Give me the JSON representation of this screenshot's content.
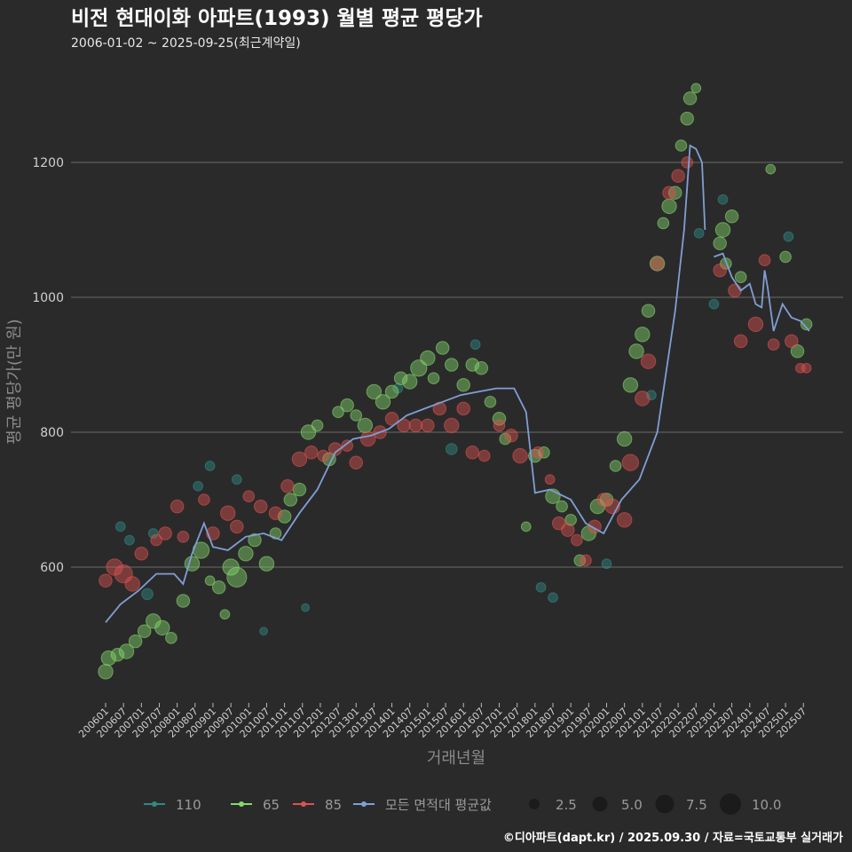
{
  "title": "비전 현대이화 아파트(1993) 월별 평균 평당가",
  "subtitle": "2006-01-02 ~ 2025-09-25(최근계약일)",
  "caption": "©디아파트(dapt.kr) / 2025.09.30 / 자료=국토교통부 실거래가",
  "chart_data": {
    "type": "scatter",
    "title": "비전 현대이화 아파트(1993) 월별 평균 평당가",
    "xlabel": "거래년월",
    "ylabel": "평균 평당가(만 원)",
    "ylim": [
      420,
      1330
    ],
    "yticks": [
      600,
      800,
      1000,
      1200
    ],
    "xticks": [
      "200601",
      "200607",
      "200701",
      "200707",
      "200801",
      "200807",
      "200901",
      "200907",
      "201001",
      "201007",
      "201101",
      "201107",
      "201201",
      "201207",
      "201301",
      "201307",
      "201401",
      "201407",
      "201501",
      "201507",
      "201601",
      "201607",
      "201701",
      "201707",
      "201801",
      "201807",
      "201901",
      "201907",
      "202001",
      "202007",
      "202101",
      "202107",
      "202201",
      "202207",
      "202301",
      "202307",
      "202401",
      "202407",
      "202501",
      "202507"
    ],
    "grid": true,
    "legend_placement": "bottom",
    "legend": {
      "series": [
        {
          "name": "110",
          "color": "#2e8b84"
        },
        {
          "name": "65",
          "color": "#86d86d"
        },
        {
          "name": "85",
          "color": "#dc5350"
        },
        {
          "name": "모든 면적대 평균값",
          "color": "#7f9fd4"
        }
      ],
      "sizes": [
        "2.5",
        "5.0",
        "7.5",
        "10.0"
      ]
    },
    "series": [
      {
        "name": "110",
        "color": "#2e8b84",
        "points": [
          [
            "2006-06",
            660,
            3
          ],
          [
            "2006-09",
            640,
            3
          ],
          [
            "2007-03",
            560,
            4
          ],
          [
            "2007-05",
            650,
            3
          ],
          [
            "2008-08",
            720,
            3
          ],
          [
            "2008-12",
            750,
            3
          ],
          [
            "2009-09",
            730,
            3
          ],
          [
            "2010-06",
            505,
            2
          ],
          [
            "2011-08",
            540,
            2
          ],
          [
            "2014-03",
            865,
            3
          ],
          [
            "2015-09",
            775,
            4
          ],
          [
            "2016-05",
            930,
            3
          ],
          [
            "2018-03",
            570,
            3
          ],
          [
            "2018-07",
            555,
            3
          ],
          [
            "2020-01",
            605,
            3
          ],
          [
            "2021-04",
            855,
            3
          ],
          [
            "2022-08",
            1095,
            3
          ],
          [
            "2023-01",
            990,
            3
          ],
          [
            "2023-04",
            1145,
            3
          ],
          [
            "2025-02",
            1090,
            3
          ]
        ]
      },
      {
        "name": "65",
        "color": "#86d86d",
        "points": [
          [
            "2006-01",
            445,
            6
          ],
          [
            "2006-02",
            465,
            6
          ],
          [
            "2006-05",
            470,
            5
          ],
          [
            "2006-08",
            475,
            6
          ],
          [
            "2006-11",
            490,
            5
          ],
          [
            "2007-02",
            505,
            5
          ],
          [
            "2007-05",
            520,
            6
          ],
          [
            "2007-08",
            510,
            6
          ],
          [
            "2007-11",
            495,
            4
          ],
          [
            "2008-03",
            550,
            5
          ],
          [
            "2008-06",
            605,
            6
          ],
          [
            "2008-09",
            625,
            7
          ],
          [
            "2008-12",
            580,
            3
          ],
          [
            "2009-03",
            570,
            5
          ],
          [
            "2009-05",
            530,
            3
          ],
          [
            "2009-07",
            600,
            7
          ],
          [
            "2009-09",
            585,
            9
          ],
          [
            "2009-12",
            620,
            6
          ],
          [
            "2010-03",
            640,
            5
          ],
          [
            "2010-07",
            605,
            6
          ],
          [
            "2010-10",
            650,
            4
          ],
          [
            "2011-01",
            675,
            5
          ],
          [
            "2011-03",
            700,
            5
          ],
          [
            "2011-06",
            715,
            5
          ],
          [
            "2011-09",
            800,
            6
          ],
          [
            "2011-12",
            810,
            4
          ],
          [
            "2012-04",
            760,
            5
          ],
          [
            "2012-07",
            830,
            4
          ],
          [
            "2012-10",
            840,
            5
          ],
          [
            "2013-01",
            825,
            4
          ],
          [
            "2013-04",
            810,
            6
          ],
          [
            "2013-07",
            860,
            6
          ],
          [
            "2013-10",
            845,
            6
          ],
          [
            "2014-01",
            860,
            5
          ],
          [
            "2014-04",
            880,
            5
          ],
          [
            "2014-07",
            875,
            6
          ],
          [
            "2014-10",
            895,
            7
          ],
          [
            "2015-01",
            910,
            6
          ],
          [
            "2015-03",
            880,
            4
          ],
          [
            "2015-06",
            925,
            5
          ],
          [
            "2015-09",
            900,
            5
          ],
          [
            "2016-01",
            870,
            5
          ],
          [
            "2016-04",
            900,
            5
          ],
          [
            "2016-07",
            895,
            5
          ],
          [
            "2016-10",
            845,
            4
          ],
          [
            "2017-01",
            820,
            5
          ],
          [
            "2017-03",
            790,
            4
          ],
          [
            "2017-10",
            660,
            3
          ],
          [
            "2018-01",
            765,
            5
          ],
          [
            "2018-04",
            770,
            4
          ],
          [
            "2018-07",
            705,
            6
          ],
          [
            "2018-10",
            690,
            4
          ],
          [
            "2019-01",
            670,
            4
          ],
          [
            "2019-04",
            610,
            4
          ],
          [
            "2019-07",
            650,
            6
          ],
          [
            "2019-10",
            690,
            6
          ],
          [
            "2020-01",
            700,
            5
          ],
          [
            "2020-04",
            750,
            4
          ],
          [
            "2020-07",
            790,
            6
          ],
          [
            "2020-09",
            870,
            6
          ],
          [
            "2020-11",
            920,
            6
          ],
          [
            "2021-01",
            945,
            6
          ],
          [
            "2021-03",
            980,
            5
          ],
          [
            "2021-06",
            1050,
            6
          ],
          [
            "2021-08",
            1110,
            4
          ],
          [
            "2021-10",
            1135,
            6
          ],
          [
            "2021-12",
            1155,
            5
          ],
          [
            "2022-02",
            1225,
            4
          ],
          [
            "2022-04",
            1265,
            5
          ],
          [
            "2022-05",
            1295,
            5
          ],
          [
            "2022-07",
            1310,
            3
          ],
          [
            "2023-03",
            1080,
            5
          ],
          [
            "2023-04",
            1100,
            6
          ],
          [
            "2023-05",
            1050,
            4
          ],
          [
            "2023-07",
            1120,
            5
          ],
          [
            "2023-10",
            1030,
            4
          ],
          [
            "2024-08",
            1190,
            3
          ],
          [
            "2025-01",
            1060,
            4
          ],
          [
            "2025-05",
            920,
            5
          ],
          [
            "2025-08",
            960,
            4
          ]
        ]
      },
      {
        "name": "85",
        "color": "#dc5350",
        "points": [
          [
            "2006-01",
            580,
            5
          ],
          [
            "2006-04",
            600,
            7
          ],
          [
            "2006-07",
            590,
            8
          ],
          [
            "2006-10",
            575,
            6
          ],
          [
            "2007-01",
            620,
            5
          ],
          [
            "2007-06",
            640,
            4
          ],
          [
            "2007-09",
            650,
            5
          ],
          [
            "2008-01",
            690,
            5
          ],
          [
            "2008-03",
            645,
            4
          ],
          [
            "2008-10",
            700,
            4
          ],
          [
            "2009-01",
            650,
            5
          ],
          [
            "2009-06",
            680,
            6
          ],
          [
            "2009-09",
            660,
            5
          ],
          [
            "2010-01",
            705,
            4
          ],
          [
            "2010-05",
            690,
            5
          ],
          [
            "2010-10",
            680,
            5
          ],
          [
            "2011-02",
            720,
            5
          ],
          [
            "2011-06",
            760,
            6
          ],
          [
            "2011-10",
            770,
            5
          ],
          [
            "2012-02",
            765,
            4
          ],
          [
            "2012-06",
            775,
            5
          ],
          [
            "2012-10",
            780,
            4
          ],
          [
            "2013-01",
            755,
            5
          ],
          [
            "2013-05",
            790,
            6
          ],
          [
            "2013-09",
            800,
            5
          ],
          [
            "2014-01",
            820,
            5
          ],
          [
            "2014-05",
            810,
            5
          ],
          [
            "2014-09",
            810,
            5
          ],
          [
            "2015-01",
            810,
            5
          ],
          [
            "2015-05",
            835,
            5
          ],
          [
            "2015-09",
            810,
            6
          ],
          [
            "2016-01",
            835,
            5
          ],
          [
            "2016-04",
            770,
            5
          ],
          [
            "2016-08",
            765,
            4
          ],
          [
            "2017-01",
            810,
            4
          ],
          [
            "2017-05",
            795,
            5
          ],
          [
            "2017-08",
            765,
            6
          ],
          [
            "2018-02",
            770,
            4
          ],
          [
            "2018-06",
            730,
            3
          ],
          [
            "2018-09",
            665,
            5
          ],
          [
            "2018-12",
            655,
            5
          ],
          [
            "2019-03",
            640,
            4
          ],
          [
            "2019-06",
            610,
            4
          ],
          [
            "2019-09",
            660,
            5
          ],
          [
            "2019-12",
            700,
            5
          ],
          [
            "2020-03",
            690,
            6
          ],
          [
            "2020-07",
            670,
            6
          ],
          [
            "2020-09",
            755,
            7
          ],
          [
            "2021-01",
            850,
            6
          ],
          [
            "2021-03",
            905,
            6
          ],
          [
            "2021-06",
            1050,
            5
          ],
          [
            "2021-10",
            1155,
            5
          ],
          [
            "2022-01",
            1180,
            5
          ],
          [
            "2022-04",
            1200,
            4
          ],
          [
            "2023-03",
            1040,
            5
          ],
          [
            "2023-08",
            1010,
            5
          ],
          [
            "2023-10",
            935,
            5
          ],
          [
            "2024-03",
            960,
            6
          ],
          [
            "2024-06",
            1055,
            4
          ],
          [
            "2024-09",
            930,
            4
          ],
          [
            "2025-03",
            935,
            5
          ],
          [
            "2025-06",
            895,
            3
          ],
          [
            "2025-08",
            895,
            3
          ]
        ]
      },
      {
        "name": "모든 면적대 평균값",
        "color": "#7f9fd4",
        "type": "line",
        "segments": [
          [
            [
              "2006-01",
              518
            ],
            [
              "2006-06",
              545
            ],
            [
              "2006-12",
              565
            ],
            [
              "2007-06",
              590
            ],
            [
              "2007-12",
              590
            ],
            [
              "2008-03",
              575
            ],
            [
              "2008-06",
              620
            ],
            [
              "2008-10",
              665
            ],
            [
              "2009-01",
              630
            ],
            [
              "2009-06",
              625
            ],
            [
              "2009-12",
              645
            ],
            [
              "2010-06",
              650
            ],
            [
              "2010-12",
              640
            ],
            [
              "2011-06",
              680
            ],
            [
              "2011-12",
              715
            ],
            [
              "2012-06",
              770
            ],
            [
              "2012-12",
              790
            ],
            [
              "2013-06",
              795
            ],
            [
              "2013-12",
              805
            ],
            [
              "2014-06",
              825
            ],
            [
              "2014-12",
              835
            ],
            [
              "2015-06",
              845
            ],
            [
              "2015-12",
              855
            ],
            [
              "2016-06",
              860
            ],
            [
              "2016-12",
              865
            ],
            [
              "2017-06",
              865
            ],
            [
              "2017-10",
              830
            ],
            [
              "2018-01",
              710
            ],
            [
              "2018-06",
              715
            ],
            [
              "2019-01",
              700
            ],
            [
              "2019-06",
              665
            ],
            [
              "2019-12",
              650
            ],
            [
              "2020-06",
              700
            ],
            [
              "2020-12",
              730
            ],
            [
              "2021-06",
              800
            ],
            [
              "2021-12",
              980
            ],
            [
              "2022-03",
              1100
            ],
            [
              "2022-05",
              1225
            ],
            [
              "2022-07",
              1220
            ],
            [
              "2022-09",
              1200
            ],
            [
              "2022-10",
              1100
            ]
          ],
          [
            [
              "2023-01",
              1060
            ],
            [
              "2023-04",
              1065
            ],
            [
              "2023-07",
              1030
            ],
            [
              "2023-10",
              1010
            ],
            [
              "2024-01",
              1020
            ],
            [
              "2024-03",
              990
            ],
            [
              "2024-05",
              985
            ],
            [
              "2024-06",
              1040
            ],
            [
              "2024-07",
              1015
            ],
            [
              "2024-09",
              950
            ],
            [
              "2024-12",
              990
            ],
            [
              "2025-03",
              970
            ],
            [
              "2025-06",
              965
            ],
            [
              "2025-09",
              950
            ]
          ]
        ]
      }
    ]
  }
}
